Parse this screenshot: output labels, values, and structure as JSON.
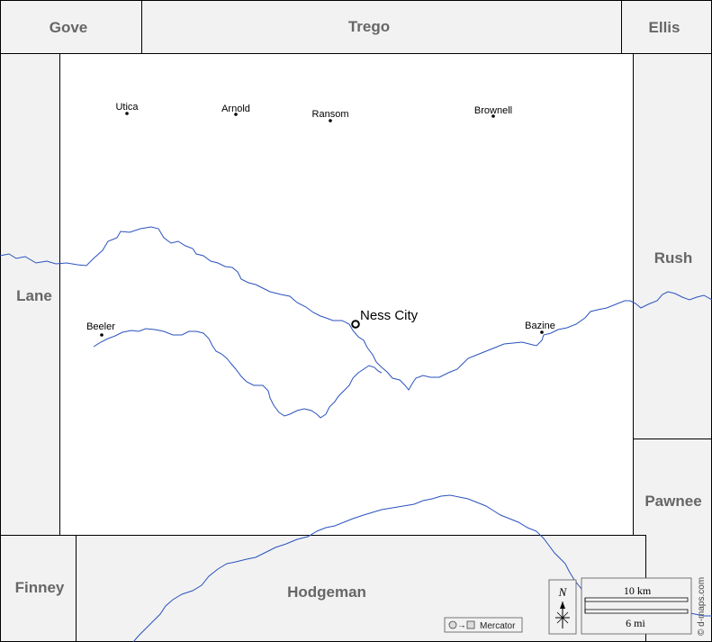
{
  "map": {
    "neighbor_counties": {
      "gove": "Gove",
      "trego": "Trego",
      "ellis": "Ellis",
      "lane": "Lane",
      "rush": "Rush",
      "pawnee": "Pawnee",
      "finney": "Finney",
      "hodgeman": "Hodgeman"
    },
    "county_seat": "Ness City",
    "towns": {
      "utica": "Utica",
      "arnold": "Arnold",
      "ransom": "Ransom",
      "brownell": "Brownell",
      "beeler": "Beeler",
      "bazine": "Bazine"
    },
    "colors": {
      "river": "#2a52be",
      "neighbor_fill": "#f2f2f2",
      "county_fill": "#ffffff",
      "border": "#000000"
    }
  },
  "legend": {
    "north": "N",
    "scale_km": "10 km",
    "scale_mi": "6 mi",
    "projection": "Mercator",
    "credit": "© d-maps.com"
  }
}
